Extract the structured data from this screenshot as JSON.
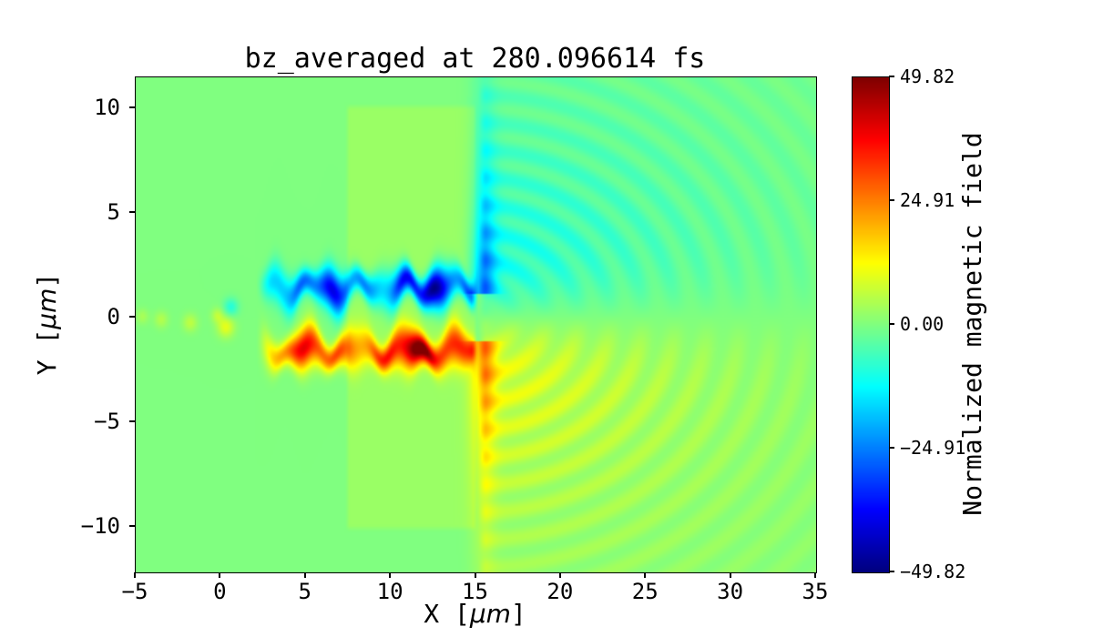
{
  "chart_data": {
    "type": "heatmap",
    "title": "bz_averaged at 280.096614 fs",
    "xlabel": {
      "prefix": "X [",
      "unit": "μm",
      "suffix": "]"
    },
    "ylabel": {
      "prefix": "Y [",
      "unit": "μm",
      "suffix": "]"
    },
    "xlim": [
      -5,
      35
    ],
    "ylim": [
      -12.2,
      11.5
    ],
    "grid": false,
    "colormap": "jet",
    "x_ticks": [
      {
        "value": -5,
        "label": "−5"
      },
      {
        "value": 0,
        "label": "0"
      },
      {
        "value": 5,
        "label": "5"
      },
      {
        "value": 10,
        "label": "10"
      },
      {
        "value": 15,
        "label": "15"
      },
      {
        "value": 20,
        "label": "20"
      },
      {
        "value": 25,
        "label": "25"
      },
      {
        "value": 30,
        "label": "30"
      },
      {
        "value": 35,
        "label": "35"
      }
    ],
    "y_ticks": [
      {
        "value": 10,
        "label": "10"
      },
      {
        "value": 5,
        "label": "5"
      },
      {
        "value": 0,
        "label": "0"
      },
      {
        "value": -5,
        "label": "−5"
      },
      {
        "value": -10,
        "label": "−10"
      }
    ],
    "colorbar": {
      "label": "Normalized magnetic field",
      "vmin": -49.82,
      "vmax": 49.82,
      "ticks": [
        {
          "value": 49.82,
          "label": "49.82"
        },
        {
          "value": 24.91,
          "label": "24.91"
        },
        {
          "value": 0,
          "label": "0.00"
        },
        {
          "value": -24.91,
          "label": "−24.91"
        },
        {
          "value": -49.82,
          "label": "−49.82"
        }
      ]
    },
    "field_model": {
      "target": {
        "x0": 7.3,
        "x1": 15.05,
        "y_half": 10.3,
        "value": 2.6
      },
      "edge_x": 15.05,
      "filament": {
        "x_start": 2.0,
        "x_end": 15.2,
        "y_upper": 1.45,
        "y_lower": -1.6,
        "width": 0.78,
        "amp": 40
      },
      "plume": {
        "amp": 22,
        "x_center": 15.4,
        "x_width": 0.75,
        "y_start": 1.1,
        "decay": 5.5
      },
      "fan": {
        "amp": 13,
        "r_decay": 7.5,
        "y_aspect": 1.45,
        "y_scale": 2.2
      },
      "ripples": {
        "amp": 9,
        "k": 3.3,
        "r_decay": 15,
        "phase": 0.8
      },
      "specks": [
        {
          "x": 0.3,
          "y": -0.45,
          "a": 10,
          "s": 0.35
        },
        {
          "x": 0.6,
          "y": 0.5,
          "a": -9,
          "s": 0.3
        },
        {
          "x": -0.2,
          "y": 0.1,
          "a": 6,
          "s": 0.25
        },
        {
          "x": -1.8,
          "y": -0.25,
          "a": 6,
          "s": 0.3
        },
        {
          "x": -3.5,
          "y": -0.1,
          "a": 5,
          "s": 0.28
        },
        {
          "x": -4.6,
          "y": 0.05,
          "a": 4,
          "s": 0.25
        }
      ]
    }
  }
}
